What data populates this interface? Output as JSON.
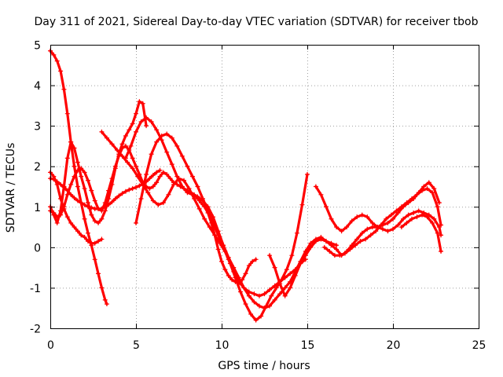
{
  "chart_data": {
    "type": "scatter",
    "title": "Day 311 of 2021, Sidereal Day-to-day VTEC variation (SDTVAR) for receiver tbob",
    "xlabel": "GPS time / hours",
    "ylabel": "SDTVAR / TECUs",
    "xlim": [
      0,
      25
    ],
    "ylim": [
      -2,
      5
    ],
    "xticks": [
      "0",
      "5",
      "10",
      "15",
      "20",
      "25"
    ],
    "yticks": [
      "-2",
      "-1",
      "0",
      "1",
      "2",
      "3",
      "4",
      "5"
    ],
    "grid": true,
    "marker": "plus",
    "color": "#ff0000",
    "series": [
      {
        "name": "s1",
        "x": [
          0.0,
          0.2,
          0.4,
          0.6,
          0.8,
          1.0,
          1.2,
          1.4,
          1.6,
          1.8,
          2.0,
          2.2,
          2.4,
          2.6,
          2.8,
          3.0,
          3.2,
          3.3
        ],
        "y": [
          4.85,
          4.75,
          4.6,
          4.35,
          3.9,
          3.3,
          2.6,
          2.0,
          1.5,
          1.1,
          0.7,
          0.35,
          0.05,
          -0.3,
          -0.65,
          -1.0,
          -1.3,
          -1.4
        ]
      },
      {
        "name": "s2",
        "x": [
          0.0,
          0.2,
          0.4,
          0.6,
          0.8,
          1.0,
          1.2,
          1.4,
          1.6,
          1.8,
          2.0,
          2.2,
          2.4,
          2.6,
          2.8,
          3.0
        ],
        "y": [
          1.85,
          1.75,
          1.55,
          1.2,
          0.95,
          0.75,
          0.6,
          0.5,
          0.4,
          0.3,
          0.25,
          0.15,
          0.1,
          0.1,
          0.15,
          0.2
        ]
      },
      {
        "name": "s3",
        "x": [
          0.0,
          0.2,
          0.4,
          0.6,
          0.8,
          1.0,
          1.2,
          1.4,
          1.6,
          1.8,
          2.0,
          2.2,
          2.4,
          2.6,
          2.8,
          3.0,
          3.2,
          3.4,
          3.6,
          3.8,
          4.0,
          4.2,
          4.4,
          4.6,
          4.8,
          5.0,
          5.2,
          5.4,
          5.6,
          5.8,
          6.0,
          6.2,
          6.4
        ],
        "y": [
          1.7,
          1.68,
          1.62,
          1.55,
          1.48,
          1.4,
          1.3,
          1.22,
          1.15,
          1.1,
          1.05,
          1.0,
          0.98,
          0.95,
          0.95,
          0.95,
          1.0,
          1.05,
          1.12,
          1.2,
          1.27,
          1.33,
          1.38,
          1.42,
          1.45,
          1.48,
          1.52,
          1.56,
          1.62,
          1.7,
          1.78,
          1.85,
          1.9
        ]
      },
      {
        "name": "s4",
        "x": [
          0.0,
          0.2,
          0.4,
          0.6,
          0.8,
          1.0,
          1.2,
          1.4,
          1.6,
          1.8,
          2.0,
          2.2,
          2.4,
          2.6,
          2.8,
          3.0,
          3.2,
          3.4,
          3.6,
          3.8,
          4.0,
          4.2,
          4.4,
          4.6,
          4.8,
          5.0,
          5.2,
          5.4,
          5.6
        ],
        "y": [
          1.0,
          0.8,
          0.6,
          0.9,
          1.5,
          2.2,
          2.6,
          2.45,
          2.1,
          1.75,
          1.45,
          1.1,
          0.8,
          0.65,
          0.6,
          0.7,
          0.9,
          1.2,
          1.55,
          1.95,
          2.3,
          2.55,
          2.75,
          2.9,
          3.05,
          3.3,
          3.6,
          3.55,
          3.0
        ]
      },
      {
        "name": "s5",
        "x": [
          0.0,
          0.2,
          0.4,
          0.6,
          0.8,
          1.0,
          1.2,
          1.4,
          1.6,
          1.8,
          2.0,
          2.2,
          2.4,
          2.6,
          2.8,
          3.0,
          3.2,
          3.4,
          3.6,
          3.8,
          4.0,
          4.2,
          4.4,
          4.6,
          4.8,
          5.0,
          5.2,
          5.4,
          5.6,
          5.8,
          6.0,
          6.2,
          6.4,
          6.6,
          6.8,
          7.0,
          7.2,
          7.4,
          7.6,
          7.8,
          8.0,
          8.2,
          8.4,
          8.6,
          8.8,
          9.0,
          9.2,
          9.4,
          9.6,
          9.8,
          10.0,
          10.2,
          10.4,
          10.6,
          10.8,
          11.0,
          11.2,
          11.4,
          11.6,
          11.8,
          12.0
        ],
        "y": [
          0.9,
          0.85,
          0.75,
          0.8,
          1.0,
          1.3,
          1.55,
          1.75,
          1.9,
          1.95,
          1.85,
          1.65,
          1.4,
          1.15,
          0.95,
          0.9,
          1.1,
          1.4,
          1.7,
          2.0,
          2.25,
          2.45,
          2.5,
          2.4,
          2.2,
          2.0,
          1.8,
          1.6,
          1.5,
          1.45,
          1.5,
          1.6,
          1.75,
          1.85,
          1.8,
          1.7,
          1.6,
          1.55,
          1.5,
          1.45,
          1.4,
          1.35,
          1.3,
          1.2,
          1.1,
          1.0,
          0.85,
          0.6,
          0.3,
          -0.05,
          -0.35,
          -0.55,
          -0.7,
          -0.8,
          -0.85,
          -0.9,
          -0.8,
          -0.65,
          -0.45,
          -0.35,
          -0.3
        ]
      },
      {
        "name": "s6",
        "x": [
          3.0,
          3.3,
          3.6,
          3.9,
          4.2,
          4.5,
          4.8,
          5.1,
          5.4,
          5.7,
          6.0,
          6.3,
          6.6,
          6.9,
          7.2,
          7.5,
          7.8,
          8.1,
          8.4,
          8.7,
          9.0,
          9.3,
          9.6,
          9.9,
          10.2,
          10.5,
          10.8,
          11.1,
          11.4,
          11.7,
          12.0,
          12.3,
          12.6,
          12.9,
          13.2,
          13.5,
          13.8,
          14.1,
          14.4,
          14.7,
          15.0
        ],
        "y": [
          2.85,
          2.7,
          2.55,
          2.4,
          2.25,
          2.1,
          1.95,
          1.75,
          1.55,
          1.35,
          1.15,
          1.05,
          1.1,
          1.3,
          1.55,
          1.7,
          1.65,
          1.45,
          1.2,
          0.95,
          0.7,
          0.5,
          0.3,
          0.1,
          -0.1,
          -0.4,
          -0.75,
          -1.1,
          -1.4,
          -1.65,
          -1.8,
          -1.7,
          -1.45,
          -1.2,
          -1.0,
          -0.8,
          -0.55,
          -0.2,
          0.35,
          1.05,
          1.8
        ]
      },
      {
        "name": "s7",
        "x": [
          4.4,
          4.7,
          5.0,
          5.3,
          5.6,
          5.9,
          6.2,
          6.5,
          6.8,
          7.1,
          7.4,
          7.7,
          8.0,
          8.3,
          8.6,
          8.9,
          9.2,
          9.5,
          9.8,
          10.1,
          10.4,
          10.7,
          11.0,
          11.3,
          11.6,
          11.9,
          12.2,
          12.5,
          12.8,
          13.1,
          13.4,
          13.7,
          14.0,
          14.3,
          14.6,
          14.9,
          15.2,
          15.5,
          15.8,
          16.1,
          16.4,
          16.7
        ],
        "y": [
          2.2,
          2.5,
          2.85,
          3.1,
          3.2,
          3.1,
          2.9,
          2.65,
          2.35,
          2.05,
          1.75,
          1.5,
          1.35,
          1.3,
          1.25,
          1.15,
          1.0,
          0.75,
          0.4,
          0.05,
          -0.25,
          -0.5,
          -0.75,
          -1.0,
          -1.2,
          -1.35,
          -1.45,
          -1.5,
          -1.45,
          -1.3,
          -1.15,
          -1.0,
          -0.85,
          -0.6,
          -0.35,
          -0.1,
          0.1,
          0.2,
          0.25,
          0.15,
          0.1,
          0.05
        ]
      },
      {
        "name": "s8",
        "x": [
          5.0,
          5.3,
          5.6,
          5.9,
          6.2,
          6.5,
          6.8,
          7.1,
          7.4,
          7.7,
          8.0,
          8.3,
          8.6,
          8.9,
          9.2,
          9.5,
          9.8,
          10.1,
          10.4,
          10.7,
          11.0,
          11.3,
          11.6,
          11.9,
          12.2,
          12.5,
          12.8,
          13.1,
          13.4,
          13.7,
          14.0,
          14.3,
          14.6,
          14.9,
          15.2,
          15.5,
          15.8,
          16.1,
          16.4,
          16.7,
          17.0,
          17.3,
          17.6,
          17.9,
          18.2,
          18.5,
          18.8,
          19.1,
          19.4,
          19.7,
          20.0,
          20.3,
          20.6,
          20.9,
          21.2,
          21.5,
          21.8,
          22.1,
          22.4,
          22.7
        ],
        "y": [
          0.6,
          1.2,
          1.8,
          2.3,
          2.6,
          2.75,
          2.8,
          2.7,
          2.5,
          2.25,
          2.0,
          1.75,
          1.5,
          1.2,
          0.9,
          0.6,
          0.3,
          0.0,
          -0.3,
          -0.6,
          -0.85,
          -1.0,
          -1.1,
          -1.15,
          -1.2,
          -1.15,
          -1.05,
          -0.95,
          -0.85,
          -0.75,
          -0.65,
          -0.55,
          -0.4,
          -0.2,
          0.0,
          0.15,
          0.2,
          0.15,
          0.05,
          -0.05,
          -0.2,
          -0.1,
          0.05,
          0.2,
          0.35,
          0.45,
          0.5,
          0.5,
          0.55,
          0.6,
          0.7,
          0.85,
          1.0,
          1.1,
          1.2,
          1.35,
          1.5,
          1.6,
          1.45,
          1.1
        ]
      },
      {
        "name": "s9",
        "x": [
          12.8,
          13.1,
          13.4,
          13.7,
          14.0,
          14.3,
          14.6,
          14.9
        ],
        "y": [
          -0.2,
          -0.5,
          -0.9,
          -1.2,
          -1.0,
          -0.7,
          -0.4,
          -0.3
        ]
      },
      {
        "name": "s10",
        "x": [
          15.5,
          15.8,
          16.1,
          16.4,
          16.7,
          17.0,
          17.3,
          17.6,
          17.9,
          18.2,
          18.5,
          18.8,
          19.1,
          19.4,
          19.7,
          20.0,
          20.3,
          20.6,
          20.9,
          21.2,
          21.5,
          21.8,
          22.1,
          22.4,
          22.7,
          22.8
        ],
        "y": [
          1.5,
          1.3,
          1.0,
          0.7,
          0.5,
          0.4,
          0.5,
          0.65,
          0.75,
          0.8,
          0.75,
          0.6,
          0.5,
          0.45,
          0.4,
          0.45,
          0.55,
          0.7,
          0.8,
          0.85,
          0.9,
          0.85,
          0.8,
          0.7,
          0.5,
          0.3
        ]
      },
      {
        "name": "s11",
        "x": [
          16.0,
          16.3,
          16.6,
          16.9,
          17.2,
          17.5,
          17.8,
          18.1,
          18.4,
          18.7,
          19.0,
          19.3,
          19.6,
          19.9,
          20.2,
          20.5,
          20.8,
          21.1,
          21.4,
          21.7,
          22.0,
          22.3,
          22.6,
          22.8
        ],
        "y": [
          0.0,
          -0.1,
          -0.2,
          -0.2,
          -0.15,
          -0.05,
          0.05,
          0.15,
          0.2,
          0.3,
          0.4,
          0.55,
          0.7,
          0.8,
          0.9,
          1.0,
          1.1,
          1.2,
          1.3,
          1.4,
          1.45,
          1.35,
          1.0,
          0.55
        ]
      },
      {
        "name": "s12",
        "x": [
          20.5,
          20.8,
          21.1,
          21.4,
          21.7,
          22.0,
          22.3,
          22.6,
          22.8
        ],
        "y": [
          0.5,
          0.6,
          0.7,
          0.75,
          0.8,
          0.75,
          0.6,
          0.35,
          -0.1
        ]
      }
    ]
  }
}
